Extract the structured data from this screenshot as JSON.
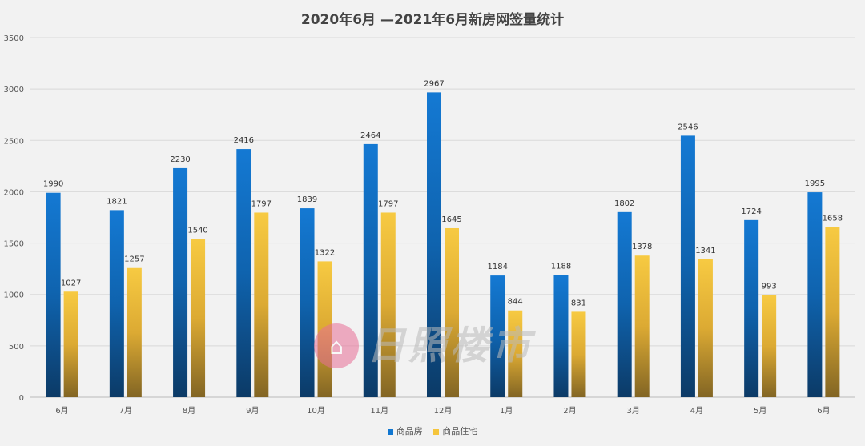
{
  "chart_data": {
    "type": "bar",
    "title": "2020年6月 —2021年6月新房网签量统计",
    "categories": [
      "6月",
      "7月",
      "8月",
      "9月",
      "10月",
      "11月",
      "12月",
      "1月",
      "2月",
      "3月",
      "4月",
      "5月",
      "6月"
    ],
    "series": [
      {
        "name": "商品房",
        "color": "#1177d1",
        "values": [
          1990,
          1821,
          2230,
          2416,
          1839,
          2464,
          2967,
          1184,
          1188,
          1802,
          2546,
          1724,
          1995
        ]
      },
      {
        "name": "商品住宅",
        "color": "#f5c53c",
        "values": [
          1027,
          1257,
          1540,
          1797,
          1322,
          1797,
          1645,
          844,
          831,
          1378,
          1341,
          993,
          1658
        ]
      }
    ],
    "ylim": [
      0,
      3500
    ],
    "yticks": [
      0,
      500,
      1000,
      1500,
      2000,
      2500,
      3000,
      3500
    ],
    "grid": true,
    "legend": "bottom",
    "xlabel": "",
    "ylabel": ""
  },
  "watermark": {
    "text": "日照楼市",
    "icon": "house-logo-icon"
  }
}
